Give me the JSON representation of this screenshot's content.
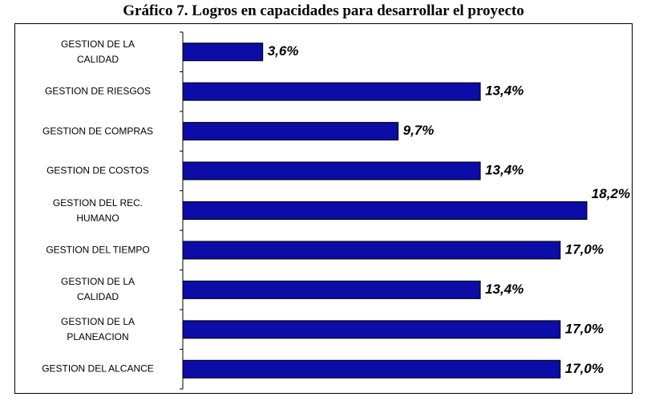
{
  "chart_data": {
    "type": "bar",
    "orientation": "horizontal",
    "title": "Gráfico 7. Logros en capacidades para desarrollar el proyecto",
    "categories": [
      "GESTION DE LA\nCALIDAD",
      "GESTION DE RIESGOS",
      "GESTION DE COMPRAS",
      "GESTION DE COSTOS",
      "GESTION DEL REC.\nHUMANO",
      "GESTION DEL TIEMPO",
      "GESTION DE LA\nCALIDAD",
      "GESTION DE LA\nPLANEACION",
      "GESTION DEL ALCANCE"
    ],
    "values": [
      3.6,
      13.4,
      9.7,
      13.4,
      18.2,
      17.0,
      13.4,
      17.0,
      17.0
    ],
    "value_labels": [
      "3,6%",
      "13,4%",
      "9,7%",
      "13,4%",
      "18,2%",
      "17,0%",
      "13,4%",
      "17,0%",
      "17,0%"
    ],
    "color": "#0c0ca6"
  }
}
